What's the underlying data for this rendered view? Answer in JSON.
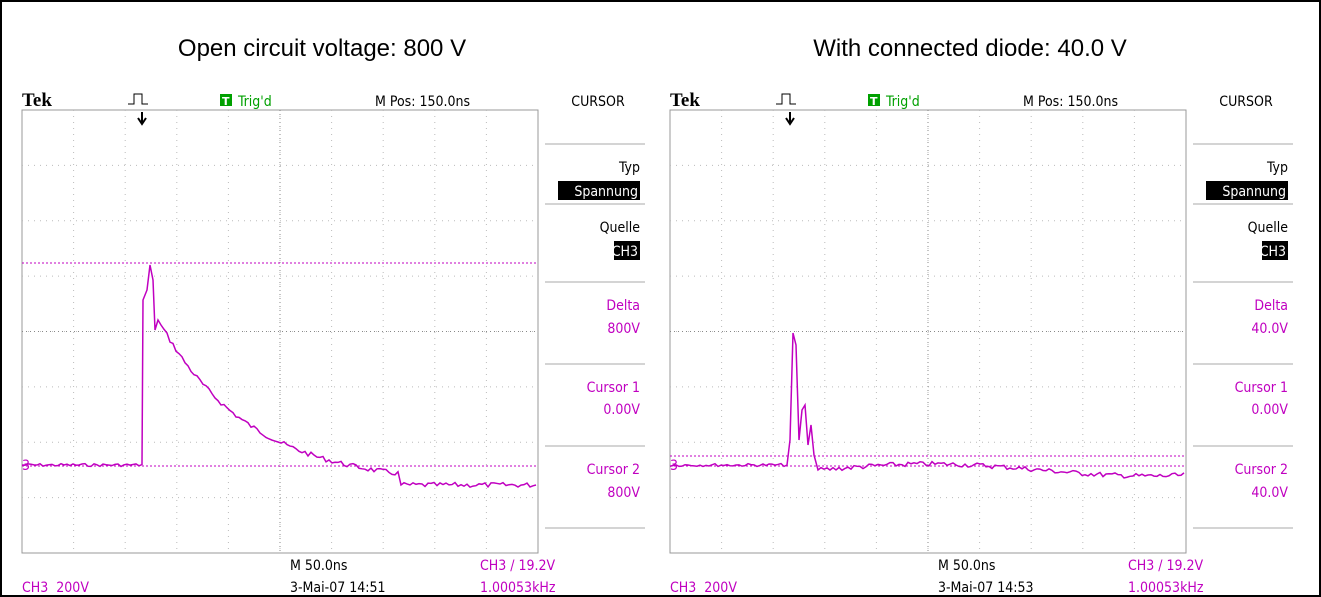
{
  "panels": [
    {
      "caption": "Open circuit voltage: 800 V",
      "brand": "Tek",
      "trigger_icon": "T",
      "trigger_status": "Trig'd",
      "m_pos": "M Pos: 150.0ns",
      "menu_title": "CURSOR",
      "menu": [
        {
          "label": "Typ",
          "value": "Spannung"
        },
        {
          "label": "Quelle",
          "value": "CH3"
        },
        {
          "label": "Delta",
          "value": "800V"
        },
        {
          "label": "Cursor 1",
          "value": "0.00V"
        },
        {
          "label": "Cursor 2",
          "value": "800V"
        }
      ],
      "channel_marker": "3",
      "timebase": "M 50.0ns",
      "trigger_info": "CH3 / 19.2V",
      "channel": "CH3  200V",
      "datetime": "3-Mai-07 14:51",
      "frequency": "1.00053kHz"
    },
    {
      "caption": "With connected diode: 40.0 V",
      "brand": "Tek",
      "trigger_icon": "T",
      "trigger_status": "Trig'd",
      "m_pos": "M Pos: 150.0ns",
      "menu_title": "CURSOR",
      "menu": [
        {
          "label": "Typ",
          "value": "Spannung"
        },
        {
          "label": "Quelle",
          "value": "CH3"
        },
        {
          "label": "Delta",
          "value": "40.0V"
        },
        {
          "label": "Cursor 1",
          "value": "0.00V"
        },
        {
          "label": "Cursor 2",
          "value": "40.0V"
        }
      ],
      "channel_marker": "3",
      "timebase": "M 50.0ns",
      "trigger_info": "CH3 / 19.2V",
      "channel": "CH3  200V",
      "datetime": "3-Mai-07 14:53",
      "frequency": "1.00053kHz"
    }
  ]
}
